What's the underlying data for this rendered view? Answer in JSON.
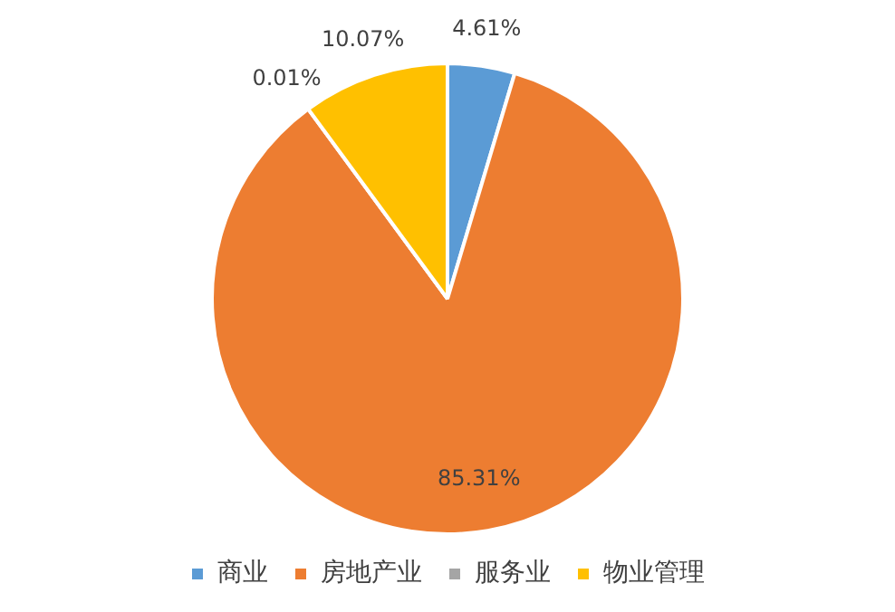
{
  "chart_data": {
    "type": "pie",
    "categories": [
      "商业",
      "房地产业",
      "服务业",
      "物业管理"
    ],
    "values": [
      4.61,
      85.31,
      0.01,
      10.07
    ],
    "colors": [
      "#5b9bd5",
      "#ed7d31",
      "#a5a5a5",
      "#ffc000"
    ],
    "value_labels": [
      "4.61%",
      "85.31%",
      "0.01%",
      "10.07%"
    ],
    "legend": "bottom"
  }
}
